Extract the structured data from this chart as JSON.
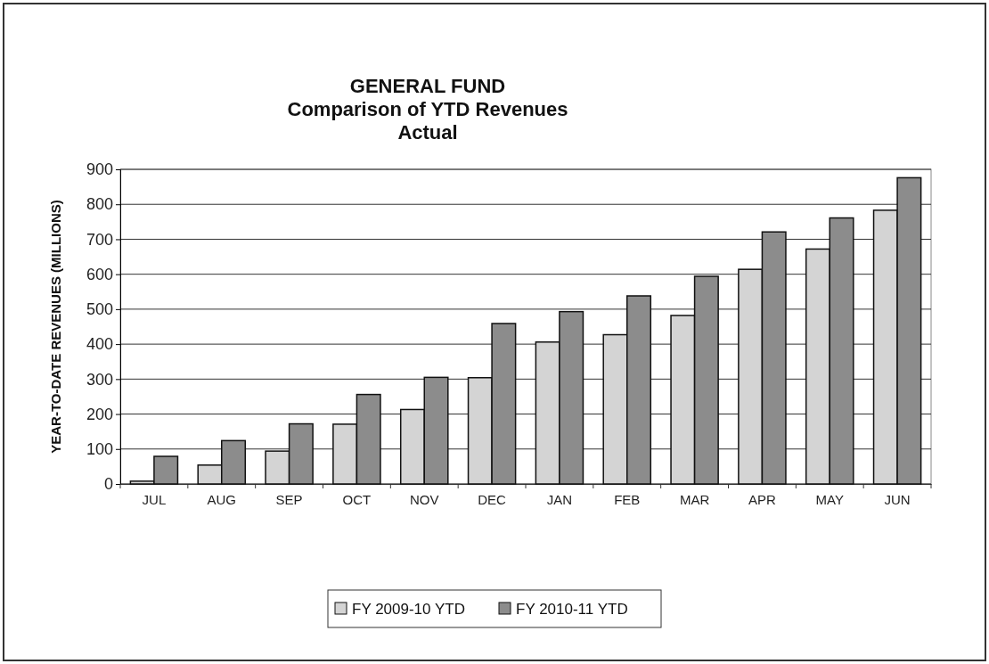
{
  "chart_data": {
    "type": "bar",
    "title": "GENERAL FUND\nComparison of YTD Revenues\nActual",
    "ylabel": "YEAR-TO-DATE REVENUES (MILLIONS)",
    "categories": [
      "JUL",
      "AUG",
      "SEP",
      "OCT",
      "NOV",
      "DEC",
      "JAN",
      "FEB",
      "MAR",
      "APR",
      "MAY",
      "JUN"
    ],
    "series": [
      {
        "name": "FY 2009-10 YTD",
        "color": "#d4d4d4",
        "values": [
          8,
          54,
          94,
          171,
          213,
          304,
          406,
          427,
          482,
          614,
          672,
          783
        ]
      },
      {
        "name": "FY 2010-11 YTD",
        "color": "#8c8c8c",
        "values": [
          79,
          124,
          172,
          256,
          305,
          459,
          493,
          538,
          594,
          721,
          761,
          876
        ]
      }
    ],
    "ylim": [
      0,
      900
    ],
    "yticks": [
      0,
      100,
      200,
      300,
      400,
      500,
      600,
      700,
      800,
      900
    ],
    "grid": "y",
    "legend": "bottom"
  }
}
